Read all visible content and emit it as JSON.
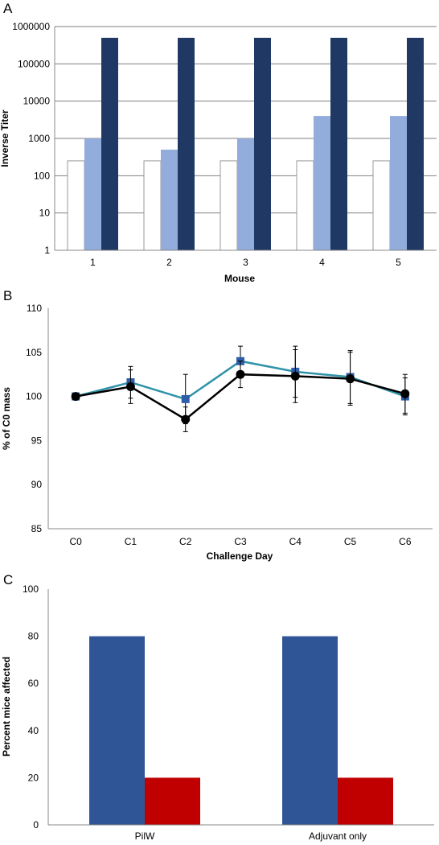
{
  "chart_data": [
    {
      "panel": "A",
      "type": "bar",
      "xlabel": "Mouse",
      "ylabel": "Inverse Titer",
      "yscale": "log",
      "ylim": [
        1,
        1000000
      ],
      "yticks": [
        "1",
        "10",
        "100",
        "1000",
        "10000",
        "100000",
        "1000000"
      ],
      "categories": [
        "1",
        "2",
        "3",
        "4",
        "5"
      ],
      "series": [
        {
          "color": "#ffffff",
          "values": [
            250,
            250,
            250,
            250,
            250
          ]
        },
        {
          "color": "#92acdc",
          "values": [
            1000,
            500,
            1000,
            4000,
            4000
          ]
        },
        {
          "color": "#1f3864",
          "values": [
            500000,
            500000,
            500000,
            500000,
            500000
          ]
        }
      ],
      "grid": "horizontal"
    },
    {
      "panel": "B",
      "type": "line",
      "xlabel": "Challenge Day",
      "ylabel": "% of C0 mass",
      "ylim": [
        85,
        110
      ],
      "yticks": [
        "85",
        "90",
        "95",
        "100",
        "105",
        "110"
      ],
      "categories": [
        "C0",
        "C1",
        "C2",
        "C3",
        "C4",
        "C5",
        "C6"
      ],
      "series": [
        {
          "color": "#2f93a8",
          "marker": "square",
          "marker_color": "#2e5ea8",
          "values": [
            100,
            101.6,
            99.7,
            104.0,
            102.8,
            102.2,
            100.0
          ],
          "errors": [
            0.3,
            1.8,
            2.8,
            1.7,
            2.9,
            3.0,
            2.1
          ]
        },
        {
          "color": "#000000",
          "marker": "circle",
          "marker_color": "#000000",
          "values": [
            100,
            101.1,
            97.4,
            102.5,
            102.3,
            102.0,
            100.3
          ],
          "errors": [
            0.3,
            1.9,
            1.4,
            1.5,
            3.0,
            3.0,
            2.2
          ]
        }
      ],
      "grid": "none"
    },
    {
      "panel": "C",
      "type": "bar",
      "xlabel": "",
      "ylabel": "Percent mice affected",
      "ylim": [
        0,
        100
      ],
      "yticks": [
        "0",
        "20",
        "40",
        "60",
        "80",
        "100"
      ],
      "categories": [
        "PilW",
        "Adjuvant only"
      ],
      "series": [
        {
          "color": "#2f5597",
          "values": [
            80,
            80
          ]
        },
        {
          "color": "#c00000",
          "values": [
            20,
            20
          ]
        }
      ],
      "grid": "none"
    }
  ]
}
